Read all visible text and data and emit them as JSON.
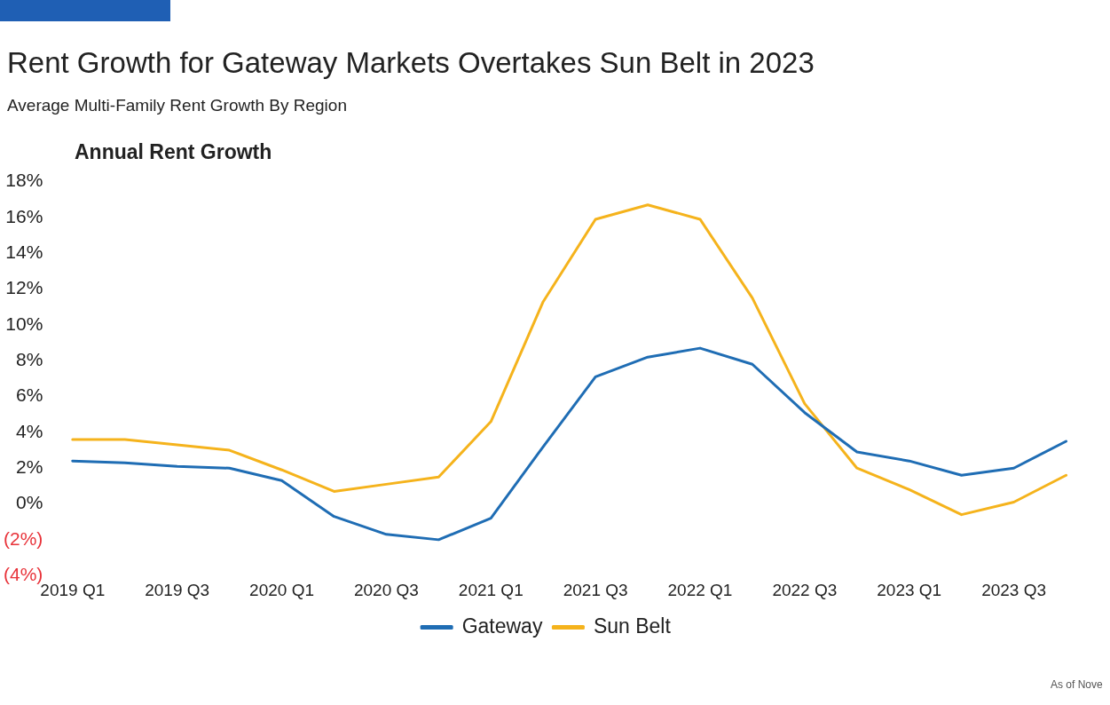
{
  "chart_data": {
    "type": "line",
    "title": "Rent Growth for Gateway Markets Overtakes Sun Belt in 2023",
    "subtitle": "Average Multi-Family  Rent Growth By Region",
    "ylabel": "Annual Rent Growth",
    "categories": [
      "2019 Q1",
      null,
      "2019 Q3",
      null,
      "2020 Q1",
      null,
      "2020 Q3",
      null,
      "2021 Q1",
      null,
      "2021 Q3",
      null,
      "2022 Q1",
      null,
      "2022 Q3",
      null,
      "2023 Q1",
      null,
      "2023 Q3",
      null
    ],
    "series": [
      {
        "name": "Gateway",
        "color": "#1f6db4",
        "values": [
          2.4,
          2.3,
          2.1,
          2.0,
          1.3,
          -0.7,
          -1.7,
          -2.0,
          -0.8,
          3.2,
          7.1,
          8.2,
          8.7,
          7.8,
          5.1,
          2.9,
          2.4,
          1.6,
          2.0,
          3.5
        ]
      },
      {
        "name": "Sun Belt",
        "color": "#f5b31c",
        "values": [
          3.6,
          3.6,
          3.3,
          3.0,
          1.9,
          0.7,
          1.1,
          1.5,
          4.6,
          11.3,
          15.9,
          16.7,
          15.9,
          11.5,
          5.6,
          2.0,
          0.8,
          -0.6,
          0.1,
          1.6
        ]
      }
    ],
    "ylim": [
      -4,
      18
    ],
    "yticks": [
      {
        "value": -4,
        "label": "(4%)"
      },
      {
        "value": -2,
        "label": "(2%)"
      },
      {
        "value": 0,
        "label": "0%"
      },
      {
        "value": 2,
        "label": "2%"
      },
      {
        "value": 4,
        "label": "4%"
      },
      {
        "value": 6,
        "label": "6%"
      },
      {
        "value": 8,
        "label": "8%"
      },
      {
        "value": 10,
        "label": "10%"
      },
      {
        "value": 12,
        "label": "12%"
      },
      {
        "value": 14,
        "label": "14%"
      },
      {
        "value": 16,
        "label": "16%"
      },
      {
        "value": 18,
        "label": "18%"
      }
    ],
    "grid": false,
    "legend": "bottom",
    "marker": "none",
    "line_style": "solid",
    "annotations": [
      "As of Nove"
    ]
  }
}
